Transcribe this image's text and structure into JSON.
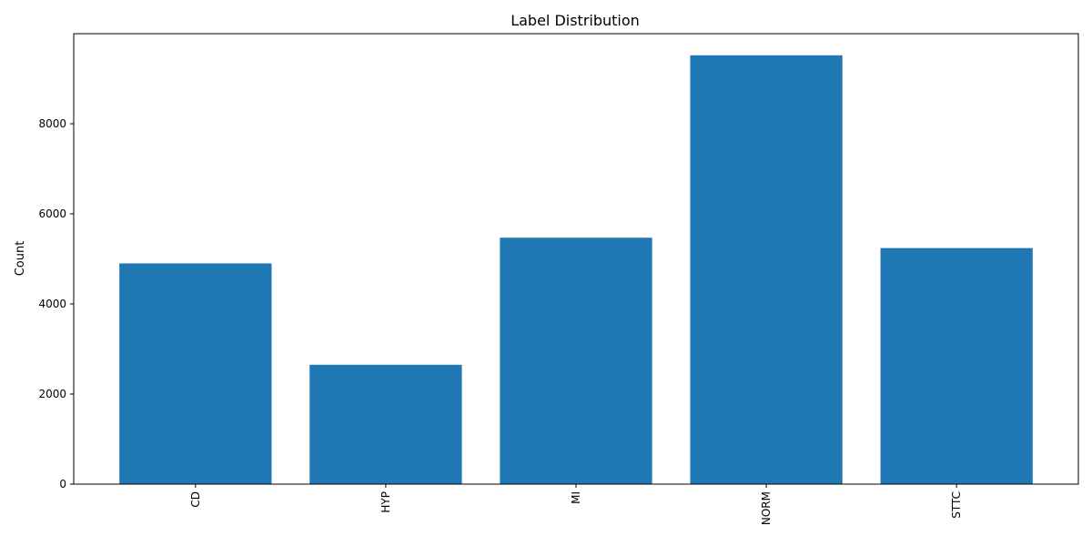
{
  "chart_data": {
    "type": "bar",
    "title": "Label Distribution",
    "xlabel": "",
    "ylabel": "Count",
    "categories": [
      "CD",
      "HYP",
      "MI",
      "NORM",
      "STTC"
    ],
    "values": [
      4900,
      2650,
      5470,
      9520,
      5240
    ],
    "ylim": [
      0,
      10000
    ],
    "yticks": [
      0,
      2000,
      4000,
      6000,
      8000
    ],
    "ytick_labels": [
      "0",
      "2000",
      "4000",
      "6000",
      "8000"
    ],
    "xtick_rotation": "vertical",
    "grid": false,
    "legend": "none",
    "bar_color": "#1f77b4"
  }
}
